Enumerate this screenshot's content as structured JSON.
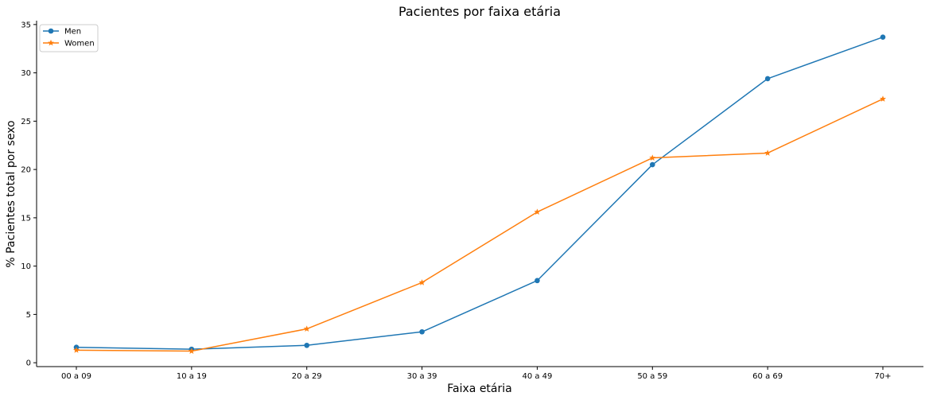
{
  "chart_data": {
    "type": "line",
    "title": "Pacientes por faixa etária",
    "xlabel": "Faixa etária",
    "ylabel": "% Pacientes total por sexo",
    "categories": [
      "00 a 09",
      "10 a 19",
      "20 a 29",
      "30 a 39",
      "40 a 49",
      "50 a 59",
      "60 a 69",
      "70+"
    ],
    "ylim": [
      -0.4,
      35.4
    ],
    "yticks": [
      0,
      5,
      10,
      15,
      20,
      25,
      30,
      35
    ],
    "grid": false,
    "legend_position": "top-left",
    "series": [
      {
        "name": "Men",
        "marker": "circle",
        "color": "#1f77b4",
        "values": [
          1.6,
          1.4,
          1.8,
          3.2,
          8.5,
          20.5,
          29.4,
          33.7
        ]
      },
      {
        "name": "Women",
        "marker": "star",
        "color": "#ff7f0e",
        "values": [
          1.3,
          1.2,
          3.5,
          8.3,
          15.6,
          21.2,
          21.7,
          27.3
        ]
      }
    ]
  }
}
